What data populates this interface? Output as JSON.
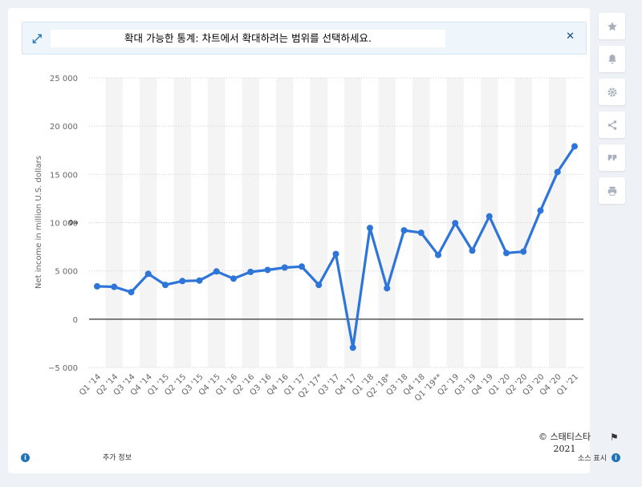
{
  "banner": {
    "text": "확대 가능한 통계: 차트에서 확대하려는 범위를 선택하세요.",
    "expand_icon": "expand-icon",
    "close_icon": "close-icon"
  },
  "sidebar": {
    "buttons": [
      "star-icon",
      "bell-icon",
      "gear-icon",
      "share-icon",
      "quote-icon",
      "print-icon"
    ]
  },
  "footer": {
    "copyright_line1": "© 스태티스타",
    "copyright_line2": "2021",
    "more_info": "추가 정보",
    "source": "소스 표시"
  },
  "stray_label": "0∞",
  "chart_data": {
    "type": "line",
    "title": "",
    "xlabel": "",
    "ylabel": "Net income in million U.S. dollars",
    "ylim": [
      -5000,
      25000
    ],
    "yticks": [
      25000,
      20000,
      15000,
      10000,
      5000,
      0,
      -5000
    ],
    "ytick_labels": [
      "25 000",
      "20 000",
      "15 000",
      "10 000",
      "5 000",
      "0",
      "−5 000"
    ],
    "grid": true,
    "color": "#2d75d9",
    "categories": [
      "Q1 '14",
      "Q2 '14",
      "Q3 '14",
      "Q4 '14",
      "Q1 '15",
      "Q2 '15",
      "Q3 '15",
      "Q4 '15",
      "Q1 '16",
      "Q2 '16",
      "Q3 '16",
      "Q4 '16",
      "Q1 '17",
      "Q2 '17*",
      "Q3 '17",
      "Q4 '17",
      "Q1 '18",
      "Q2 '18*",
      "Q3 '18",
      "Q4 '18",
      "Q1 '19**",
      "Q2 '19",
      "Q3 '19",
      "Q4 '19",
      "Q1 '20",
      "Q2 '20",
      "Q3 '20",
      "Q4 '20",
      "Q1 '21"
    ],
    "series": [
      {
        "values": [
          3400,
          3350,
          2800,
          4700,
          3550,
          3950,
          4000,
          4950,
          4200,
          4900,
          5100,
          5350,
          5450,
          3550,
          6750,
          -2950,
          9450,
          3200,
          9200,
          8950,
          6650,
          9950,
          7100,
          10650,
          6850,
          7000,
          11250,
          15250,
          17900
        ]
      }
    ]
  }
}
